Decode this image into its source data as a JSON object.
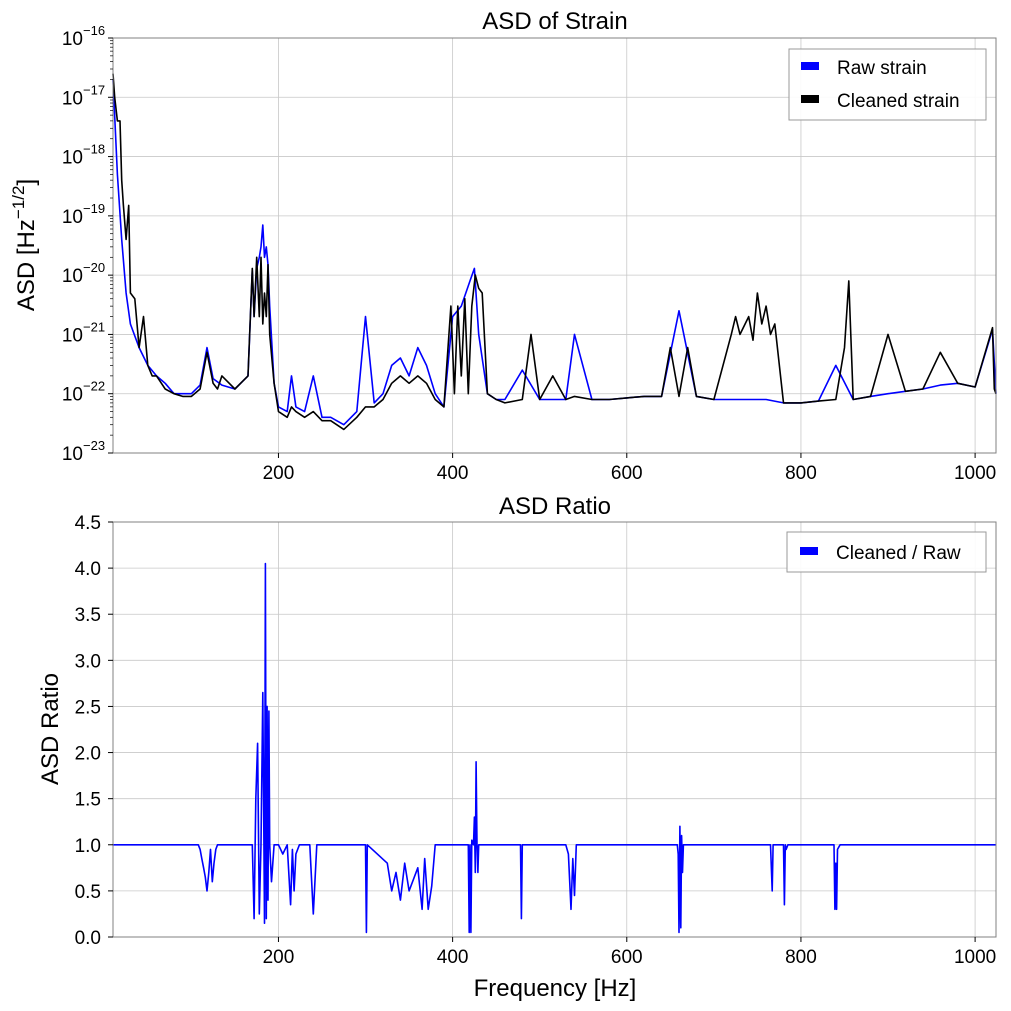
{
  "chart_data": [
    {
      "type": "line",
      "title": "ASD of Strain",
      "xlabel": "",
      "ylabel": "ASD [Hz",
      "ylabel_exp": "−1/2",
      "ylabel_close": "]",
      "yscale": "log",
      "xlim": [
        10,
        1024
      ],
      "ylim": [
        1e-23,
        1e-16
      ],
      "grid": true,
      "legend_position": "top-right",
      "xticks": [
        200,
        400,
        600,
        800,
        1000
      ],
      "xtick_labels": [
        "200",
        "400",
        "600",
        "800",
        "1000"
      ],
      "yticks": [
        {
          "value": 1e-16,
          "base": "10",
          "exp": "−16"
        },
        {
          "value": 1e-17,
          "base": "10",
          "exp": "−17"
        },
        {
          "value": 1e-18,
          "base": "10",
          "exp": "−18"
        },
        {
          "value": 1e-19,
          "base": "10",
          "exp": "−19"
        },
        {
          "value": 1e-20,
          "base": "10",
          "exp": "−20"
        },
        {
          "value": 1e-21,
          "base": "10",
          "exp": "−21"
        },
        {
          "value": 1e-22,
          "base": "10",
          "exp": "−22"
        },
        {
          "value": 1e-23,
          "base": "10",
          "exp": "−23"
        }
      ],
      "series": [
        {
          "name": "Raw strain",
          "color": "#0000ff",
          "x": [
            10,
            15,
            20,
            25,
            30,
            40,
            50,
            60,
            70,
            80,
            100,
            110,
            118,
            125,
            135,
            150,
            165,
            170,
            172,
            175,
            178,
            180,
            182,
            184,
            186,
            188,
            190,
            195,
            200,
            210,
            215,
            220,
            230,
            240,
            250,
            260,
            275,
            290,
            300,
            310,
            320,
            330,
            340,
            350,
            360,
            370,
            380,
            390,
            400,
            410,
            420,
            425,
            430,
            440,
            450,
            460,
            480,
            500,
            515,
            530,
            540,
            560,
            580,
            600,
            620,
            640,
            660,
            680,
            700,
            720,
            740,
            760,
            780,
            800,
            820,
            840,
            860,
            880,
            900,
            920,
            940,
            960,
            980,
            1000,
            1020,
            1024
          ],
          "y": [
            2e-17,
            5e-19,
            4e-20,
            5e-21,
            1.5e-21,
            6e-22,
            3e-22,
            2e-22,
            1.5e-22,
            1e-22,
            1e-22,
            1.4e-22,
            6e-22,
            1.8e-22,
            1.4e-22,
            1.2e-22,
            2e-22,
            1.2e-20,
            2e-21,
            1.3e-20,
            2e-20,
            3e-20,
            7e-20,
            2e-20,
            3e-20,
            1.5e-20,
            3e-21,
            1.5e-22,
            6e-23,
            5e-23,
            2e-22,
            6e-23,
            5e-23,
            2e-22,
            4e-23,
            4e-23,
            3e-23,
            5e-23,
            2e-21,
            7e-23,
            1e-22,
            3e-22,
            4e-22,
            2e-22,
            6e-22,
            3e-22,
            1e-22,
            6e-23,
            2e-21,
            3e-21,
            8e-21,
            1.3e-20,
            1e-21,
            1e-22,
            8e-23,
            8e-23,
            2.5e-22,
            8e-23,
            8e-23,
            8e-23,
            1e-21,
            8e-23,
            8e-23,
            8.5e-23,
            9e-23,
            9e-23,
            2.5e-21,
            9e-23,
            8e-23,
            8e-23,
            8e-23,
            8e-23,
            7e-23,
            7e-23,
            7.5e-23,
            3e-22,
            8e-23,
            9e-23,
            1e-22,
            1.1e-22,
            1.2e-22,
            1.4e-22,
            1.5e-22,
            1.3e-22,
            1.2e-21,
            1e-22
          ]
        },
        {
          "name": "Cleaned strain",
          "color": "#000000",
          "x": [
            10,
            12,
            15,
            18,
            20,
            22,
            25,
            28,
            30,
            35,
            40,
            45,
            50,
            55,
            60,
            70,
            80,
            90,
            100,
            110,
            118,
            125,
            130,
            135,
            150,
            165,
            170,
            172,
            175,
            178,
            180,
            182,
            184,
            186,
            188,
            190,
            195,
            200,
            210,
            215,
            220,
            230,
            240,
            250,
            260,
            275,
            290,
            300,
            310,
            320,
            330,
            340,
            350,
            360,
            370,
            380,
            390,
            398,
            402,
            406,
            410,
            414,
            418,
            422,
            426,
            430,
            434,
            440,
            450,
            460,
            480,
            490,
            500,
            515,
            530,
            540,
            560,
            580,
            600,
            620,
            640,
            650,
            660,
            670,
            680,
            700,
            720,
            725,
            730,
            740,
            745,
            750,
            755,
            760,
            765,
            770,
            780,
            800,
            820,
            840,
            850,
            855,
            860,
            880,
            900,
            920,
            940,
            960,
            980,
            1000,
            1020,
            1022,
            1024
          ],
          "y": [
            2.5e-17,
            1e-17,
            4e-18,
            4e-18,
            4e-19,
            1.5e-19,
            4e-20,
            1.5e-19,
            5e-21,
            4e-21,
            6e-22,
            2e-21,
            3e-22,
            2e-22,
            2e-22,
            1.2e-22,
            1e-22,
            9e-23,
            9e-23,
            1.2e-22,
            5e-22,
            1.5e-22,
            1.2e-22,
            2e-22,
            1.2e-22,
            2e-22,
            1.3e-20,
            2e-21,
            2e-20,
            2e-21,
            2e-20,
            1.5e-21,
            5e-21,
            2e-21,
            1.5e-20,
            1e-21,
            1.5e-22,
            5e-23,
            4e-23,
            6e-23,
            5e-23,
            4e-23,
            5e-23,
            3.5e-23,
            3.5e-23,
            2.5e-23,
            4e-23,
            6e-23,
            6e-23,
            8e-23,
            1.5e-22,
            2e-22,
            1.5e-22,
            2e-22,
            1.5e-22,
            8e-23,
            6e-23,
            3e-21,
            1e-22,
            3e-21,
            2e-22,
            4e-21,
            1e-22,
            3e-21,
            1e-20,
            6e-21,
            5e-21,
            1e-22,
            8e-23,
            7e-23,
            8e-23,
            1e-21,
            8e-23,
            2e-22,
            8e-23,
            9e-23,
            8e-23,
            8e-23,
            8.5e-23,
            9e-23,
            9e-23,
            6e-22,
            9e-23,
            6e-22,
            9e-23,
            8e-23,
            1e-21,
            2e-21,
            1e-21,
            2e-21,
            8e-22,
            5e-21,
            1.5e-21,
            3e-21,
            1e-21,
            1.5e-21,
            7e-23,
            7e-23,
            7.5e-23,
            8e-23,
            6e-22,
            8e-21,
            8e-23,
            9e-23,
            1e-21,
            1.1e-22,
            1.2e-22,
            5e-22,
            1.5e-22,
            1.3e-22,
            1.3e-21,
            1.2e-22,
            1e-22
          ]
        }
      ]
    },
    {
      "type": "line",
      "title": "ASD Ratio",
      "xlabel": "Frequency [Hz]",
      "ylabel": "ASD Ratio",
      "xlim": [
        10,
        1024
      ],
      "ylim": [
        0.0,
        4.5
      ],
      "grid": true,
      "legend_position": "top-right",
      "xticks": [
        200,
        400,
        600,
        800,
        1000
      ],
      "xtick_labels": [
        "200",
        "400",
        "600",
        "800",
        "1000"
      ],
      "yticks": [
        0.0,
        0.5,
        1.0,
        1.5,
        2.0,
        2.5,
        3.0,
        3.5,
        4.0,
        4.5
      ],
      "ytick_labels": [
        "0.0",
        "0.5",
        "1.0",
        "1.5",
        "2.0",
        "2.5",
        "3.0",
        "3.5",
        "4.0",
        "4.5"
      ],
      "series": [
        {
          "name": "Cleaned / Raw",
          "color": "#0000ff",
          "x": [
            10,
            108,
            110,
            112,
            114,
            116,
            118,
            120,
            122,
            124,
            126,
            128,
            130,
            170,
            172,
            174,
            176,
            178,
            180,
            182,
            184,
            185,
            186,
            187,
            188,
            189,
            190,
            192,
            195,
            198,
            200,
            205,
            210,
            214,
            216,
            218,
            220,
            224,
            236,
            240,
            244,
            300,
            301,
            302,
            325,
            330,
            335,
            340,
            345,
            350,
            360,
            365,
            368,
            372,
            376,
            380,
            385,
            418,
            419,
            420,
            421,
            422,
            424,
            425,
            426,
            427,
            428,
            429,
            430,
            478,
            479,
            480,
            481,
            530,
            533,
            536,
            538,
            540,
            542,
            545,
            658,
            659,
            660,
            661,
            662,
            663,
            664,
            665,
            668,
            670,
            765,
            767,
            768,
            770,
            780,
            781,
            782,
            783,
            785,
            838,
            839,
            840,
            841,
            842,
            845,
            1024
          ],
          "y": [
            1.0,
            1.0,
            0.95,
            0.85,
            0.75,
            0.65,
            0.5,
            0.7,
            0.95,
            0.6,
            0.8,
            0.95,
            1.0,
            1.0,
            0.2,
            1.5,
            2.1,
            0.25,
            1.0,
            2.65,
            0.15,
            4.05,
            0.2,
            2.5,
            0.4,
            2.45,
            1.0,
            0.6,
            1.0,
            1.0,
            1.0,
            0.9,
            1.0,
            0.35,
            0.95,
            0.5,
            0.9,
            1.0,
            1.0,
            0.25,
            1.0,
            1.0,
            0.05,
            1.0,
            0.8,
            0.5,
            0.7,
            0.4,
            0.8,
            0.5,
            0.75,
            0.3,
            0.85,
            0.3,
            0.55,
            1.0,
            1.0,
            1.0,
            0.05,
            1.0,
            0.05,
            1.05,
            1.0,
            1.3,
            0.7,
            1.9,
            1.0,
            0.7,
            1.0,
            1.0,
            0.2,
            1.0,
            1.0,
            1.0,
            0.9,
            0.3,
            0.85,
            0.45,
            1.0,
            1.0,
            1.0,
            0.9,
            0.05,
            1.2,
            0.1,
            1.1,
            0.7,
            1.0,
            1.0,
            1.0,
            1.0,
            0.5,
            1.0,
            1.0,
            1.0,
            0.35,
            1.0,
            0.95,
            1.0,
            1.0,
            0.3,
            0.8,
            0.3,
            0.95,
            1.0,
            1.0
          ]
        }
      ]
    }
  ]
}
